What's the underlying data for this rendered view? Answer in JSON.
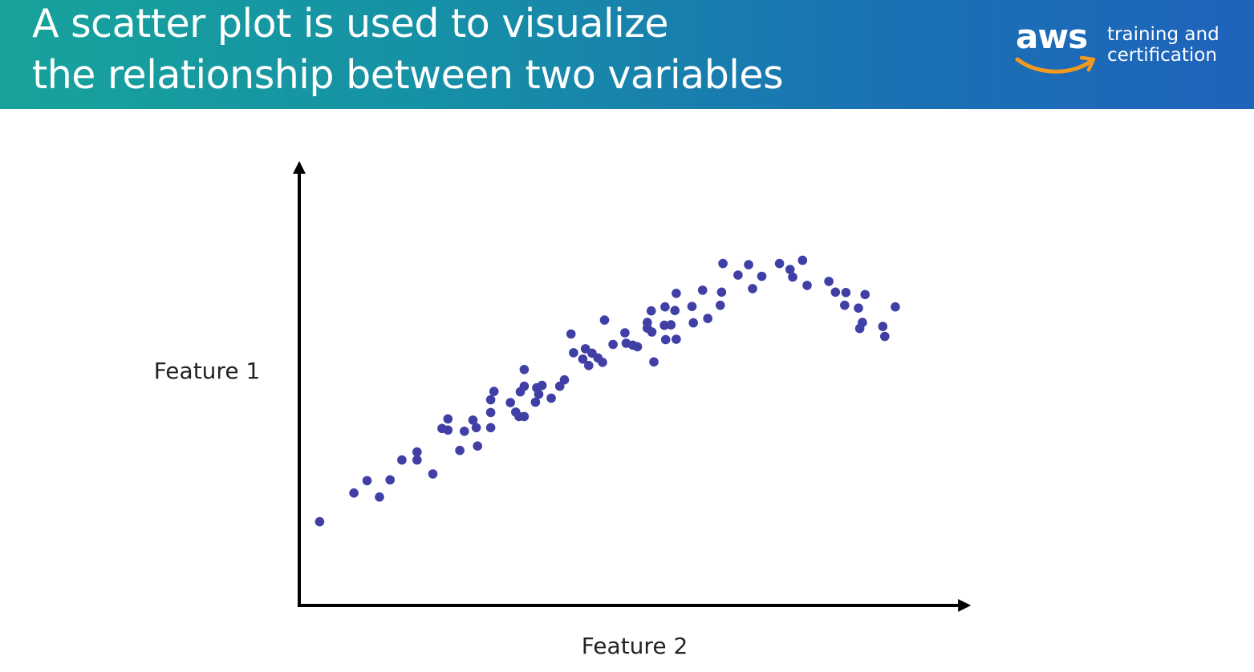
{
  "header": {
    "title_line1": "A scatter plot is used to visualize",
    "title_line2": "the relationship between two variables",
    "logo_word": "aws",
    "logo_text_line1": "training and",
    "logo_text_line2": "certification",
    "logo_icon": "amazon-smile-arrow-icon"
  },
  "colors": {
    "header_start": "#17a39b",
    "header_end": "#1e63bc",
    "point": "#3f3fa6",
    "smile": "#f29a1f",
    "axis": "#000000"
  },
  "chart_data": {
    "type": "scatter",
    "title": "",
    "xlabel": "Feature 2",
    "ylabel": "Feature 1",
    "xlim": [
      0,
      100
    ],
    "ylim": [
      0,
      100
    ],
    "grid": false,
    "legend": "none",
    "axis_ticks": false,
    "points": [
      [
        3.1,
        20.6
      ],
      [
        8.3,
        27.8
      ],
      [
        10.3,
        30.9
      ],
      [
        12.2,
        26.8
      ],
      [
        13.8,
        31.1
      ],
      [
        15.6,
        36.1
      ],
      [
        17.9,
        36.1
      ],
      [
        17.9,
        38.1
      ],
      [
        20.3,
        32.6
      ],
      [
        21.7,
        44.0
      ],
      [
        22.6,
        46.4
      ],
      [
        22.6,
        43.6
      ],
      [
        24.4,
        38.5
      ],
      [
        25.1,
        43.3
      ],
      [
        26.4,
        46.1
      ],
      [
        26.9,
        44.2
      ],
      [
        27.1,
        39.6
      ],
      [
        29.1,
        44.2
      ],
      [
        29.1,
        48.0
      ],
      [
        29.1,
        51.2
      ],
      [
        29.6,
        53.3
      ],
      [
        32.1,
        50.5
      ],
      [
        32.9,
        48.1
      ],
      [
        33.4,
        47.0
      ],
      [
        33.6,
        53.2
      ],
      [
        34.2,
        54.6
      ],
      [
        34.2,
        47.0
      ],
      [
        34.2,
        58.8
      ],
      [
        35.9,
        50.6
      ],
      [
        36.1,
        54.2
      ],
      [
        36.4,
        52.6
      ],
      [
        36.9,
        54.8
      ],
      [
        38.3,
        51.6
      ],
      [
        39.6,
        54.6
      ],
      [
        40.3,
        56.2
      ],
      [
        41.3,
        67.7
      ],
      [
        41.7,
        63.0
      ],
      [
        43.1,
        61.4
      ],
      [
        43.5,
        64.0
      ],
      [
        44.0,
        59.8
      ],
      [
        44.5,
        62.9
      ],
      [
        45.4,
        61.7
      ],
      [
        46.1,
        60.6
      ],
      [
        46.4,
        71.2
      ],
      [
        47.7,
        65.1
      ],
      [
        49.5,
        68.0
      ],
      [
        49.7,
        65.4
      ],
      [
        50.7,
        64.9
      ],
      [
        51.4,
        64.5
      ],
      [
        52.9,
        70.6
      ],
      [
        52.9,
        69.2
      ],
      [
        53.5,
        73.5
      ],
      [
        53.6,
        68.2
      ],
      [
        53.9,
        60.7
      ],
      [
        55.5,
        69.9
      ],
      [
        55.6,
        74.5
      ],
      [
        55.7,
        66.3
      ],
      [
        56.5,
        70.0
      ],
      [
        57.1,
        73.6
      ],
      [
        57.3,
        66.4
      ],
      [
        57.3,
        77.9
      ],
      [
        59.7,
        74.6
      ],
      [
        59.9,
        70.5
      ],
      [
        61.3,
        78.7
      ],
      [
        62.1,
        71.6
      ],
      [
        64.0,
        74.9
      ],
      [
        64.2,
        78.2
      ],
      [
        64.4,
        85.4
      ],
      [
        66.7,
        82.5
      ],
      [
        68.3,
        85.1
      ],
      [
        68.9,
        79.1
      ],
      [
        70.3,
        82.2
      ],
      [
        73.0,
        85.4
      ],
      [
        74.6,
        83.9
      ],
      [
        75.0,
        82.0
      ],
      [
        76.5,
        86.2
      ],
      [
        77.2,
        79.9
      ],
      [
        80.5,
        80.9
      ],
      [
        81.5,
        78.2
      ],
      [
        82.9,
        74.9
      ],
      [
        83.1,
        78.1
      ],
      [
        85.0,
        74.2
      ],
      [
        85.2,
        69.1
      ],
      [
        85.6,
        70.6
      ],
      [
        86.0,
        77.6
      ],
      [
        88.7,
        69.6
      ],
      [
        89.0,
        67.1
      ],
      [
        90.6,
        74.5
      ]
    ]
  }
}
